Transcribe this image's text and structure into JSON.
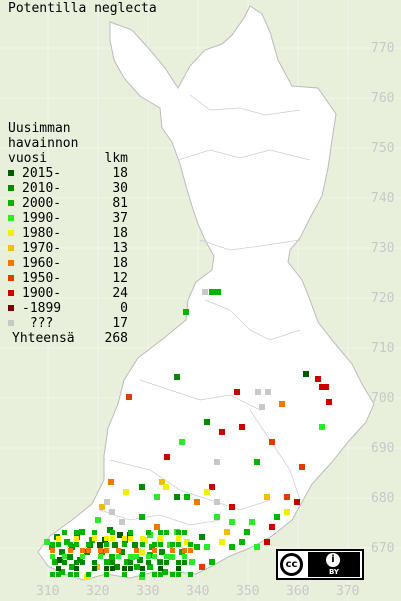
{
  "title": "Potentilla neglecta",
  "legend": {
    "header": [
      "Uusimman",
      "havainnon",
      "vuosi"
    ],
    "count_header": "lkm",
    "items": [
      {
        "label": "2015-",
        "count": "18",
        "color": "#005a00"
      },
      {
        "label": "2010-",
        "count": "30",
        "color": "#008a00"
      },
      {
        "label": "2000-",
        "count": "81",
        "color": "#00b400"
      },
      {
        "label": "1990-",
        "count": "37",
        "color": "#2ee82e"
      },
      {
        "label": "1980-",
        "count": "18",
        "color": "#f0f000"
      },
      {
        "label": "1970-",
        "count": "13",
        "color": "#f0c000"
      },
      {
        "label": "1960-",
        "count": "18",
        "color": "#f07800"
      },
      {
        "label": "1950-",
        "count": "12",
        "color": "#e03c00"
      },
      {
        "label": "1900-",
        "count": "24",
        "color": "#c80000"
      },
      {
        "label": "-1899",
        "count": "0",
        "color": "#780000"
      },
      {
        "label": " ???",
        "count": "17",
        "color": "#c8c8c8"
      }
    ],
    "total_label": "Yhteensä",
    "total_count": "268"
  },
  "y_axis": [
    "770",
    "760",
    "750",
    "740",
    "730",
    "720",
    "710",
    "700",
    "690",
    "680",
    "670"
  ],
  "x_axis": [
    "310",
    "320",
    "330",
    "340",
    "350",
    "360",
    "370"
  ],
  "license": {
    "cc": "cc",
    "by": "BY"
  }
}
